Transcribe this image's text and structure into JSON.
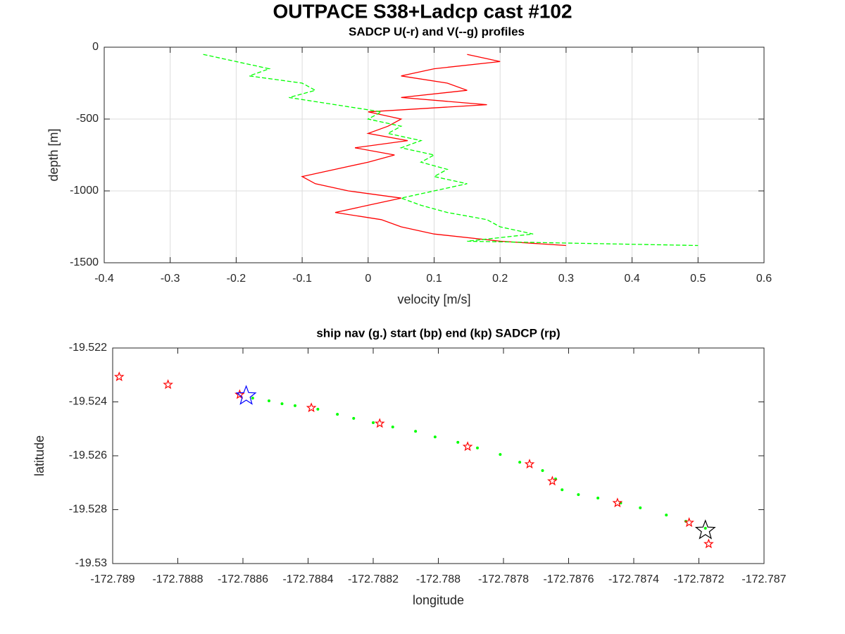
{
  "chart_data": [
    {
      "type": "line",
      "title": "OUTPACE S38+Ladcp cast #102",
      "subtitle": "SADCP U(-r) and V(--g) profiles",
      "xlabel": "velocity [m/s]",
      "ylabel": "depth [m]",
      "xlim": [
        -0.4,
        0.6
      ],
      "xticks": [
        -0.4,
        -0.3,
        -0.2,
        -0.1,
        0,
        0.1,
        0.2,
        0.3,
        0.4,
        0.5,
        0.6
      ],
      "ylim": [
        -1500,
        0
      ],
      "yticks": [
        -1500,
        -1000,
        -500,
        0
      ],
      "grid": true,
      "orientation": "vertical",
      "y": [
        -50,
        -100,
        -150,
        -200,
        -250,
        -300,
        -350,
        -400,
        -450,
        -500,
        -550,
        -600,
        -650,
        -700,
        -750,
        -800,
        -850,
        -900,
        -950,
        -1000,
        -1050,
        -1100,
        -1150,
        -1200,
        -1250,
        -1300,
        -1350,
        -1380
      ],
      "series": [
        {
          "color": "#ff0000",
          "dash": false,
          "values": [
            0.15,
            0.2,
            0.1,
            0.05,
            0.12,
            0.15,
            0.05,
            0.18,
            0.0,
            0.05,
            0.03,
            0.0,
            0.06,
            -0.02,
            0.04,
            0.0,
            -0.05,
            -0.1,
            -0.08,
            -0.03,
            0.05,
            0.0,
            -0.05,
            0.02,
            0.05,
            0.1,
            0.2,
            0.3
          ]
        },
        {
          "color": "#00ff00",
          "dash": true,
          "values": [
            -0.25,
            -0.2,
            -0.15,
            -0.18,
            -0.1,
            -0.08,
            -0.12,
            -0.05,
            0.02,
            0.0,
            0.05,
            0.03,
            0.08,
            0.05,
            0.1,
            0.08,
            0.12,
            0.1,
            0.15,
            0.1,
            0.05,
            0.08,
            0.12,
            0.18,
            0.2,
            0.25,
            0.15,
            0.5
          ]
        }
      ]
    },
    {
      "type": "scatter",
      "title": "ship nav (g.) start (bp) end (kp) SADCP (rp)",
      "xlabel": "longitude",
      "ylabel": "latitude",
      "xlim": [
        -172.789,
        -172.787
      ],
      "xticks": [
        -172.789,
        -172.7888,
        -172.7886,
        -172.7884,
        -172.7882,
        -172.788,
        -172.7878,
        -172.7876,
        -172.7874,
        -172.7872,
        -172.787
      ],
      "ylim": [
        -19.53,
        -19.522
      ],
      "yticks": [
        -19.53,
        -19.528,
        -19.526,
        -19.524,
        -19.522
      ],
      "grid": false,
      "series": [
        {
          "color": "#00ff00",
          "marker": "dot",
          "marker_size": 2,
          "x": [
            -172.78857,
            -172.78852,
            -172.78848,
            -172.78844,
            -172.78837,
            -172.78831,
            -172.78826,
            -172.7882,
            -172.78814,
            -172.78807,
            -172.78801,
            -172.78794,
            -172.78788,
            -172.78781,
            -172.78775,
            -172.78768,
            -172.78764,
            -172.78762,
            -172.78757,
            -172.78751,
            -172.78744,
            -172.78738,
            -172.7873,
            -172.78724,
            -172.78718
          ],
          "values": [
            -19.52386,
            -19.52396,
            -19.52407,
            -19.52414,
            -19.52427,
            -19.52446,
            -19.52461,
            -19.52477,
            -19.52493,
            -19.52509,
            -19.5253,
            -19.5255,
            -19.52571,
            -19.52595,
            -19.52624,
            -19.52655,
            -19.52686,
            -19.52726,
            -19.52744,
            -19.52757,
            -19.52775,
            -19.52793,
            -19.5282,
            -19.52843,
            -19.52869
          ]
        },
        {
          "color": "#ff0000",
          "marker": "star",
          "marker_size": 6,
          "x": [
            -172.78898,
            -172.78883,
            -172.78861,
            -172.78839,
            -172.78818,
            -172.78791,
            -172.78772,
            -172.78765,
            -172.78745,
            -172.78723,
            -172.78717
          ],
          "values": [
            -19.52307,
            -19.52336,
            -19.52373,
            -19.52422,
            -19.5248,
            -19.52566,
            -19.52631,
            -19.52694,
            -19.52775,
            -19.52848,
            -19.52927
          ]
        },
        {
          "color": "#0000ff",
          "marker": "star",
          "marker_size": 14,
          "x": [
            -172.78859
          ],
          "values": [
            -19.52378
          ]
        },
        {
          "color": "#000000",
          "marker": "star",
          "marker_size": 14,
          "x": [
            -172.78718
          ],
          "values": [
            -19.52877
          ]
        }
      ]
    }
  ]
}
